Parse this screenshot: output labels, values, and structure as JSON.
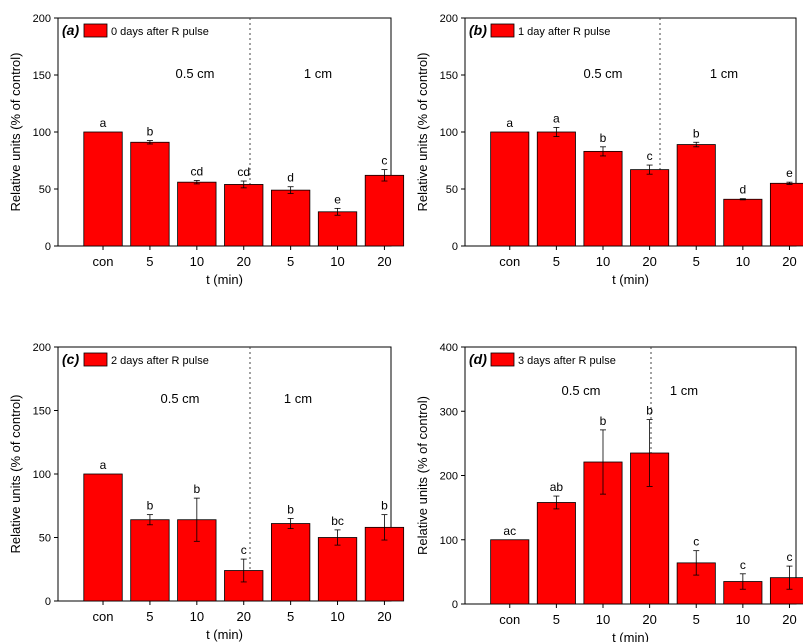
{
  "chart_data": [
    {
      "type": "bar",
      "panel_label": "(a)",
      "legend_label": "0 days after R pulse",
      "categories": [
        "con",
        "5",
        "10",
        "20",
        "5",
        "10",
        "20"
      ],
      "values": [
        100,
        91,
        56,
        54,
        49,
        30,
        62
      ],
      "errors": [
        0,
        1.5,
        1.5,
        3,
        3,
        3,
        5
      ],
      "letters": [
        "a",
        "b",
        "cd",
        "cd",
        "d",
        "e",
        "c"
      ],
      "group_labels": [
        "0.5 cm",
        "1 cm"
      ],
      "xlabel": "t (min)",
      "ylabel": "Relative units (% of control)",
      "ylim": [
        0,
        200
      ],
      "yticks": [
        0,
        50,
        100,
        150,
        200
      ],
      "legend_position": "top-left"
    },
    {
      "type": "bar",
      "panel_label": "(b)",
      "legend_label": "1 day after R pulse",
      "categories": [
        "con",
        "5",
        "10",
        "20",
        "5",
        "10",
        "20"
      ],
      "values": [
        100,
        100,
        83,
        67,
        89,
        41,
        55
      ],
      "errors": [
        0,
        4,
        4,
        4,
        2,
        0.5,
        1
      ],
      "letters": [
        "a",
        "a",
        "b",
        "c",
        "b",
        "d",
        "e"
      ],
      "group_labels": [
        "0.5 cm",
        "1 cm"
      ],
      "xlabel": "t (min)",
      "ylabel": "Relative units (% of control)",
      "ylim": [
        0,
        200
      ],
      "yticks": [
        0,
        50,
        100,
        150,
        200
      ],
      "legend_position": "top-left"
    },
    {
      "type": "bar",
      "panel_label": "(c)",
      "legend_label": "2 days after R pulse",
      "categories": [
        "con",
        "5",
        "10",
        "20",
        "5",
        "10",
        "20"
      ],
      "values": [
        100,
        64,
        64,
        24,
        61,
        50,
        58
      ],
      "errors": [
        0,
        4,
        17,
        9,
        4,
        6,
        10
      ],
      "letters": [
        "a",
        "b",
        "b",
        "c",
        "b",
        "bc",
        "b"
      ],
      "group_labels": [
        "0.5 cm",
        "1 cm"
      ],
      "xlabel": "t (min)",
      "ylabel": "Relative units (% of control)",
      "ylim": [
        0,
        200
      ],
      "yticks": [
        0,
        50,
        100,
        150,
        200
      ],
      "legend_position": "top-left"
    },
    {
      "type": "bar",
      "panel_label": "(d)",
      "legend_label": "3 days after R pulse",
      "categories": [
        "con",
        "5",
        "10",
        "20",
        "5",
        "10",
        "20"
      ],
      "values": [
        100,
        158,
        221,
        235,
        64,
        35,
        41
      ],
      "errors": [
        0,
        10,
        50,
        52,
        19,
        12,
        18
      ],
      "letters": [
        "ac",
        "ab",
        "b",
        "b",
        "c",
        "c",
        "c"
      ],
      "group_labels": [
        "0.5 cm",
        "1 cm"
      ],
      "xlabel": "t (min)",
      "ylabel": "Relative units (% of control)",
      "ylim": [
        0,
        400
      ],
      "yticks": [
        0,
        100,
        200,
        300,
        400
      ],
      "legend_position": "top-left"
    }
  ],
  "colors": {
    "bar_fill": "#ff0000",
    "bar_stroke": "#000000",
    "axis": "#000000",
    "divider": "#444444"
  }
}
